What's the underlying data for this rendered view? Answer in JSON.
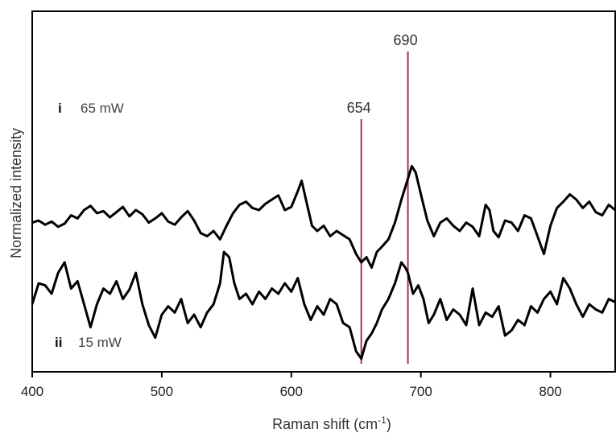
{
  "chart_data": {
    "type": "line",
    "title": "",
    "xlabel": "Raman shift (cm",
    "xlabel_sup": "-1",
    "xlabel_close": ")",
    "ylabel": "Normalized intensity",
    "xlim": [
      400,
      850
    ],
    "x_ticks": [
      400,
      500,
      600,
      700,
      800
    ],
    "y_ticks_shown": false,
    "grid": false,
    "legend": "none",
    "line_color": "#000000",
    "marker_color": "#a0306e",
    "markers": [
      {
        "x": 654,
        "label": "654"
      },
      {
        "x": 690,
        "label": "690"
      }
    ],
    "series": [
      {
        "roman": "i",
        "power": "65 mW",
        "points": [
          [
            400,
            0.18
          ],
          [
            405,
            0.2
          ],
          [
            410,
            0.16
          ],
          [
            415,
            0.19
          ],
          [
            420,
            0.14
          ],
          [
            425,
            0.17
          ],
          [
            430,
            0.25
          ],
          [
            435,
            0.22
          ],
          [
            440,
            0.3
          ],
          [
            445,
            0.34
          ],
          [
            450,
            0.27
          ],
          [
            455,
            0.29
          ],
          [
            460,
            0.23
          ],
          [
            465,
            0.28
          ],
          [
            470,
            0.33
          ],
          [
            475,
            0.24
          ],
          [
            480,
            0.3
          ],
          [
            485,
            0.26
          ],
          [
            490,
            0.18
          ],
          [
            495,
            0.22
          ],
          [
            500,
            0.27
          ],
          [
            505,
            0.19
          ],
          [
            510,
            0.16
          ],
          [
            515,
            0.23
          ],
          [
            520,
            0.29
          ],
          [
            525,
            0.2
          ],
          [
            530,
            0.08
          ],
          [
            535,
            0.05
          ],
          [
            540,
            0.1
          ],
          [
            545,
            0.02
          ],
          [
            550,
            0.15
          ],
          [
            555,
            0.27
          ],
          [
            560,
            0.35
          ],
          [
            565,
            0.38
          ],
          [
            570,
            0.32
          ],
          [
            575,
            0.3
          ],
          [
            580,
            0.36
          ],
          [
            585,
            0.4
          ],
          [
            590,
            0.44
          ],
          [
            595,
            0.3
          ],
          [
            600,
            0.33
          ],
          [
            605,
            0.48
          ],
          [
            608,
            0.58
          ],
          [
            612,
            0.36
          ],
          [
            616,
            0.15
          ],
          [
            620,
            0.1
          ],
          [
            625,
            0.15
          ],
          [
            630,
            0.05
          ],
          [
            635,
            0.1
          ],
          [
            640,
            0.06
          ],
          [
            645,
            0.02
          ],
          [
            650,
            -0.12
          ],
          [
            654,
            -0.2
          ],
          [
            658,
            -0.15
          ],
          [
            662,
            -0.25
          ],
          [
            666,
            -0.1
          ],
          [
            670,
            -0.05
          ],
          [
            675,
            0.02
          ],
          [
            680,
            0.18
          ],
          [
            685,
            0.4
          ],
          [
            690,
            0.6
          ],
          [
            693,
            0.72
          ],
          [
            696,
            0.66
          ],
          [
            700,
            0.45
          ],
          [
            705,
            0.2
          ],
          [
            710,
            0.05
          ],
          [
            715,
            0.18
          ],
          [
            720,
            0.22
          ],
          [
            725,
            0.15
          ],
          [
            730,
            0.1
          ],
          [
            735,
            0.18
          ],
          [
            740,
            0.14
          ],
          [
            745,
            0.05
          ],
          [
            750,
            0.35
          ],
          [
            753,
            0.3
          ],
          [
            756,
            0.1
          ],
          [
            760,
            0.04
          ],
          [
            765,
            0.2
          ],
          [
            770,
            0.18
          ],
          [
            775,
            0.1
          ],
          [
            780,
            0.25
          ],
          [
            785,
            0.22
          ],
          [
            790,
            0.05
          ],
          [
            795,
            -0.12
          ],
          [
            800,
            0.15
          ],
          [
            805,
            0.32
          ],
          [
            810,
            0.38
          ],
          [
            815,
            0.45
          ],
          [
            820,
            0.4
          ],
          [
            825,
            0.32
          ],
          [
            830,
            0.38
          ],
          [
            835,
            0.28
          ],
          [
            840,
            0.25
          ],
          [
            845,
            0.35
          ],
          [
            850,
            0.3
          ]
        ]
      },
      {
        "roman": "ii",
        "power": "15 mW",
        "points": [
          [
            400,
            -0.6
          ],
          [
            405,
            -0.4
          ],
          [
            410,
            -0.42
          ],
          [
            415,
            -0.5
          ],
          [
            420,
            -0.3
          ],
          [
            425,
            -0.2
          ],
          [
            430,
            -0.45
          ],
          [
            435,
            -0.38
          ],
          [
            440,
            -0.6
          ],
          [
            445,
            -0.82
          ],
          [
            450,
            -0.6
          ],
          [
            455,
            -0.45
          ],
          [
            460,
            -0.5
          ],
          [
            465,
            -0.38
          ],
          [
            470,
            -0.55
          ],
          [
            475,
            -0.46
          ],
          [
            480,
            -0.3
          ],
          [
            485,
            -0.6
          ],
          [
            490,
            -0.8
          ],
          [
            495,
            -0.92
          ],
          [
            500,
            -0.7
          ],
          [
            505,
            -0.62
          ],
          [
            510,
            -0.68
          ],
          [
            515,
            -0.55
          ],
          [
            520,
            -0.78
          ],
          [
            525,
            -0.7
          ],
          [
            530,
            -0.82
          ],
          [
            535,
            -0.68
          ],
          [
            540,
            -0.6
          ],
          [
            545,
            -0.4
          ],
          [
            548,
            -0.1
          ],
          [
            552,
            -0.15
          ],
          [
            556,
            -0.4
          ],
          [
            560,
            -0.55
          ],
          [
            565,
            -0.5
          ],
          [
            570,
            -0.6
          ],
          [
            575,
            -0.48
          ],
          [
            580,
            -0.55
          ],
          [
            585,
            -0.45
          ],
          [
            590,
            -0.5
          ],
          [
            595,
            -0.4
          ],
          [
            600,
            -0.48
          ],
          [
            605,
            -0.35
          ],
          [
            610,
            -0.6
          ],
          [
            615,
            -0.75
          ],
          [
            620,
            -0.62
          ],
          [
            625,
            -0.7
          ],
          [
            630,
            -0.55
          ],
          [
            635,
            -0.6
          ],
          [
            640,
            -0.78
          ],
          [
            645,
            -0.82
          ],
          [
            650,
            -1.05
          ],
          [
            654,
            -1.12
          ],
          [
            658,
            -0.95
          ],
          [
            662,
            -0.88
          ],
          [
            666,
            -0.78
          ],
          [
            670,
            -0.65
          ],
          [
            675,
            -0.55
          ],
          [
            680,
            -0.4
          ],
          [
            685,
            -0.2
          ],
          [
            688,
            -0.25
          ],
          [
            690,
            -0.3
          ],
          [
            694,
            -0.5
          ],
          [
            698,
            -0.42
          ],
          [
            702,
            -0.55
          ],
          [
            706,
            -0.78
          ],
          [
            710,
            -0.7
          ],
          [
            715,
            -0.55
          ],
          [
            720,
            -0.75
          ],
          [
            725,
            -0.65
          ],
          [
            730,
            -0.7
          ],
          [
            735,
            -0.8
          ],
          [
            740,
            -0.45
          ],
          [
            745,
            -0.8
          ],
          [
            750,
            -0.68
          ],
          [
            755,
            -0.72
          ],
          [
            760,
            -0.62
          ],
          [
            765,
            -0.9
          ],
          [
            770,
            -0.85
          ],
          [
            775,
            -0.75
          ],
          [
            780,
            -0.8
          ],
          [
            785,
            -0.62
          ],
          [
            790,
            -0.68
          ],
          [
            795,
            -0.55
          ],
          [
            800,
            -0.48
          ],
          [
            805,
            -0.6
          ],
          [
            810,
            -0.35
          ],
          [
            815,
            -0.45
          ],
          [
            820,
            -0.6
          ],
          [
            825,
            -0.72
          ],
          [
            830,
            -0.6
          ],
          [
            835,
            -0.65
          ],
          [
            840,
            -0.68
          ],
          [
            845,
            -0.55
          ],
          [
            850,
            -0.58
          ]
        ]
      }
    ]
  }
}
